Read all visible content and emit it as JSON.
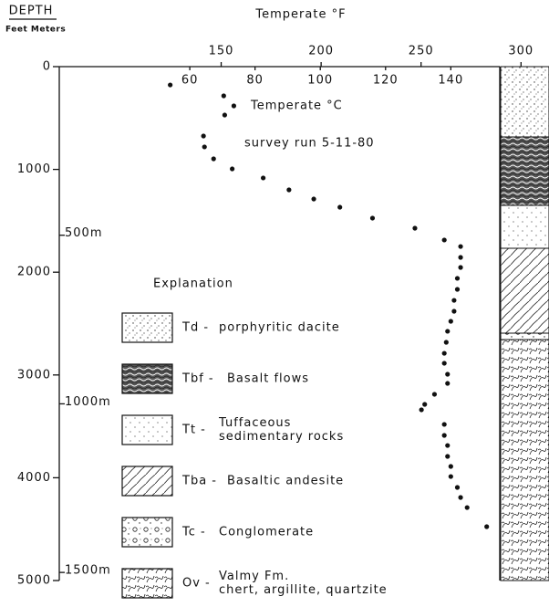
{
  "header": {
    "depth_label": "DEPTH",
    "units_label": "Feet  Meters"
  },
  "chart_data": {
    "type": "scatter",
    "x2_label": "Temperate °F",
    "annotations": [
      "Temperate °C",
      "survey run 5-11-80"
    ],
    "x": [
      54,
      70.4,
      70.7,
      73.5,
      64.2,
      64.5,
      67.3,
      73,
      82.5,
      90.4,
      98,
      106,
      116,
      129,
      138,
      143,
      143,
      143,
      142,
      142,
      141,
      141,
      140,
      139,
      138.6,
      138,
      138,
      139,
      139,
      135,
      132,
      131,
      138,
      138,
      139,
      139,
      140,
      140,
      142,
      143,
      145,
      151
    ],
    "values": [
      178,
      284,
      471,
      382,
      675,
      781,
      897,
      995,
      1083,
      1199,
      1288,
      1368,
      1474,
      1572,
      1687,
      1750,
      1856,
      1954,
      2060,
      2167,
      2274,
      2380,
      2478,
      2575,
      2682,
      2789,
      2886,
      2993,
      3082,
      3188,
      3286,
      3339,
      3481,
      3588,
      3686,
      3792,
      3890,
      3988,
      4094,
      4192,
      4290,
      4476
    ],
    "color": "#111111",
    "xlim": [
      20,
      155
    ],
    "xticks": [
      60,
      80,
      100,
      120,
      140
    ],
    "x2lim": [
      69,
      314
    ],
    "x2ticks": [
      150,
      200,
      250,
      300
    ],
    "ylim": [
      0,
      5000
    ],
    "y_inverted": true,
    "yticks": [
      0,
      1000,
      2000,
      3000,
      4000,
      5000
    ],
    "y2lim": [
      0,
      1524
    ],
    "y2ticks": [
      {
        "value": 500,
        "label": "500m"
      },
      {
        "value": 1000,
        "label": "1000m"
      },
      {
        "value": 1500,
        "label": "1500m"
      }
    ]
  },
  "legend": {
    "title": "Explanation",
    "items": [
      {
        "code": "Td -",
        "lines": [
          "porphyritic dacite"
        ]
      },
      {
        "code": "Tbf -",
        "lines": [
          "Basalt flows"
        ]
      },
      {
        "code": "Tt -",
        "lines": [
          "Tuffaceous",
          "sedimentary rocks"
        ]
      },
      {
        "code": "Tba -",
        "lines": [
          "Basaltic andesite"
        ]
      },
      {
        "code": "Tc -",
        "lines": [
          "Conglomerate"
        ]
      },
      {
        "code": "Ov -",
        "lines": [
          "Valmy Fm.",
          "chert, argillite, quartzite"
        ]
      }
    ]
  }
}
